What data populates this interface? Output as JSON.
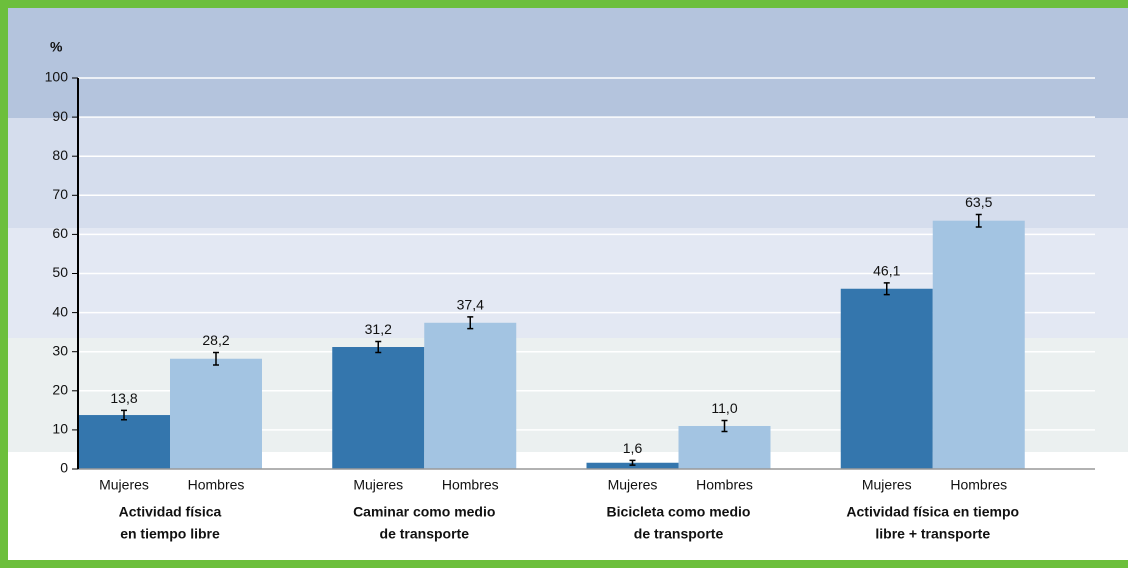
{
  "chart_data": {
    "type": "bar",
    "y_label": "%",
    "categories": [
      [
        "Actividad física",
        "en tiempo libre"
      ],
      [
        "Caminar como medio",
        "de transporte"
      ],
      [
        "Bicicleta como medio",
        "de transporte"
      ],
      [
        "Actividad física en tiempo",
        "libre + transporte"
      ]
    ],
    "series": [
      {
        "name": "Mujeres",
        "color": "#3476ad",
        "values": [
          13.8,
          31.2,
          1.6,
          46.1
        ],
        "value_labels": [
          "13,8",
          "31,2",
          "1,6",
          "46,1"
        ],
        "errors": [
          1.2,
          1.4,
          0.6,
          1.5
        ]
      },
      {
        "name": "Hombres",
        "color": "#a3c4e2",
        "values": [
          28.2,
          37.4,
          11.0,
          63.5
        ],
        "value_labels": [
          "28,2",
          "37,4",
          "11,0",
          "63,5"
        ],
        "errors": [
          1.6,
          1.5,
          1.4,
          1.6
        ]
      }
    ],
    "ylim": [
      0,
      100
    ],
    "yticks": [
      0,
      10,
      20,
      30,
      40,
      50,
      60,
      70,
      80,
      90,
      100
    ],
    "grid": true
  }
}
